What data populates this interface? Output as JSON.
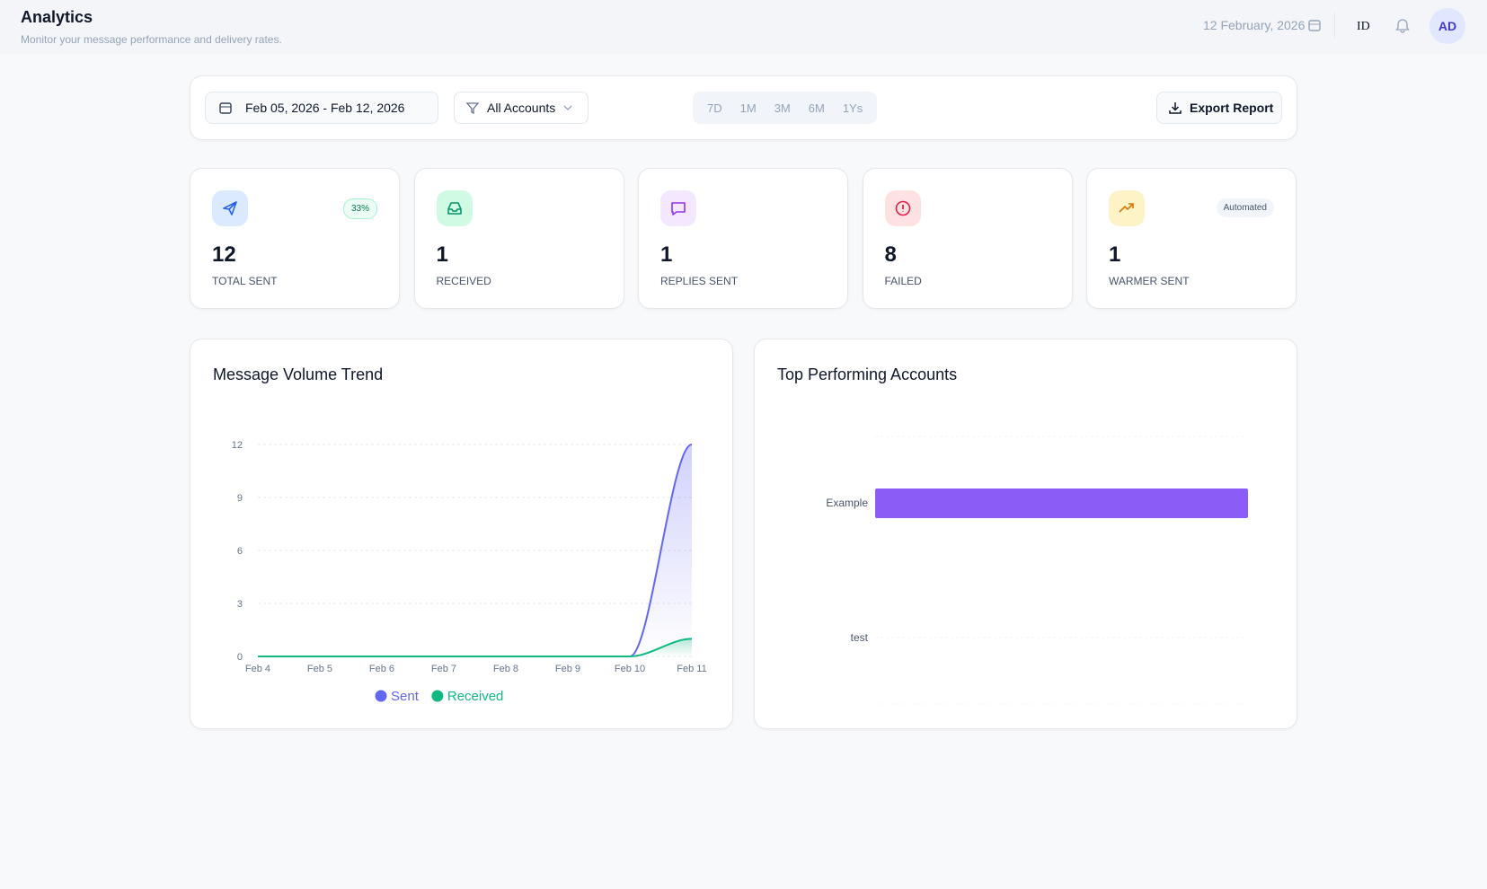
{
  "header": {
    "title": "Analytics",
    "subtitle": "Monitor your message performance and delivery rates.",
    "date": "12 February, 2026",
    "language": "ID",
    "avatar": "AD"
  },
  "toolbar": {
    "date_range": "Feb 05, 2026 - Feb 12, 2026",
    "account_filter": "All Accounts",
    "ranges": [
      "7D",
      "1M",
      "3M",
      "6M",
      "1Ys"
    ],
    "export": "Export Report"
  },
  "stats": [
    {
      "value": 12,
      "label": "TOTAL SENT",
      "badge": "33%"
    },
    {
      "value": 1,
      "label": "RECEIVED"
    },
    {
      "value": 1,
      "label": "REPLIES SENT"
    },
    {
      "value": 8,
      "label": "FAILED"
    },
    {
      "value": 1,
      "label": "WARMER SENT",
      "badge": "Automated"
    }
  ],
  "chart_data": [
    {
      "type": "line",
      "title": "Message Volume Trend",
      "categories": [
        "Feb 4",
        "Feb 5",
        "Feb 6",
        "Feb 7",
        "Feb 8",
        "Feb 9",
        "Feb 10",
        "Feb 11"
      ],
      "series": [
        {
          "name": "Sent",
          "color": "#6366f1",
          "values": [
            0,
            0,
            0,
            0,
            0,
            0,
            0,
            12
          ]
        },
        {
          "name": "Received",
          "color": "#10b981",
          "values": [
            0,
            0,
            0,
            0,
            0,
            0,
            0,
            1
          ]
        }
      ],
      "ylim": [
        0,
        12
      ],
      "yticks": [
        0,
        3,
        6,
        9,
        12
      ],
      "grid": true
    },
    {
      "type": "hbar",
      "title": "Top Performing Accounts",
      "categories": [
        "Example",
        "test"
      ],
      "values": [
        1,
        0
      ],
      "color": "#8b5cf6",
      "xlim": [
        0,
        1
      ],
      "grid": true
    }
  ]
}
